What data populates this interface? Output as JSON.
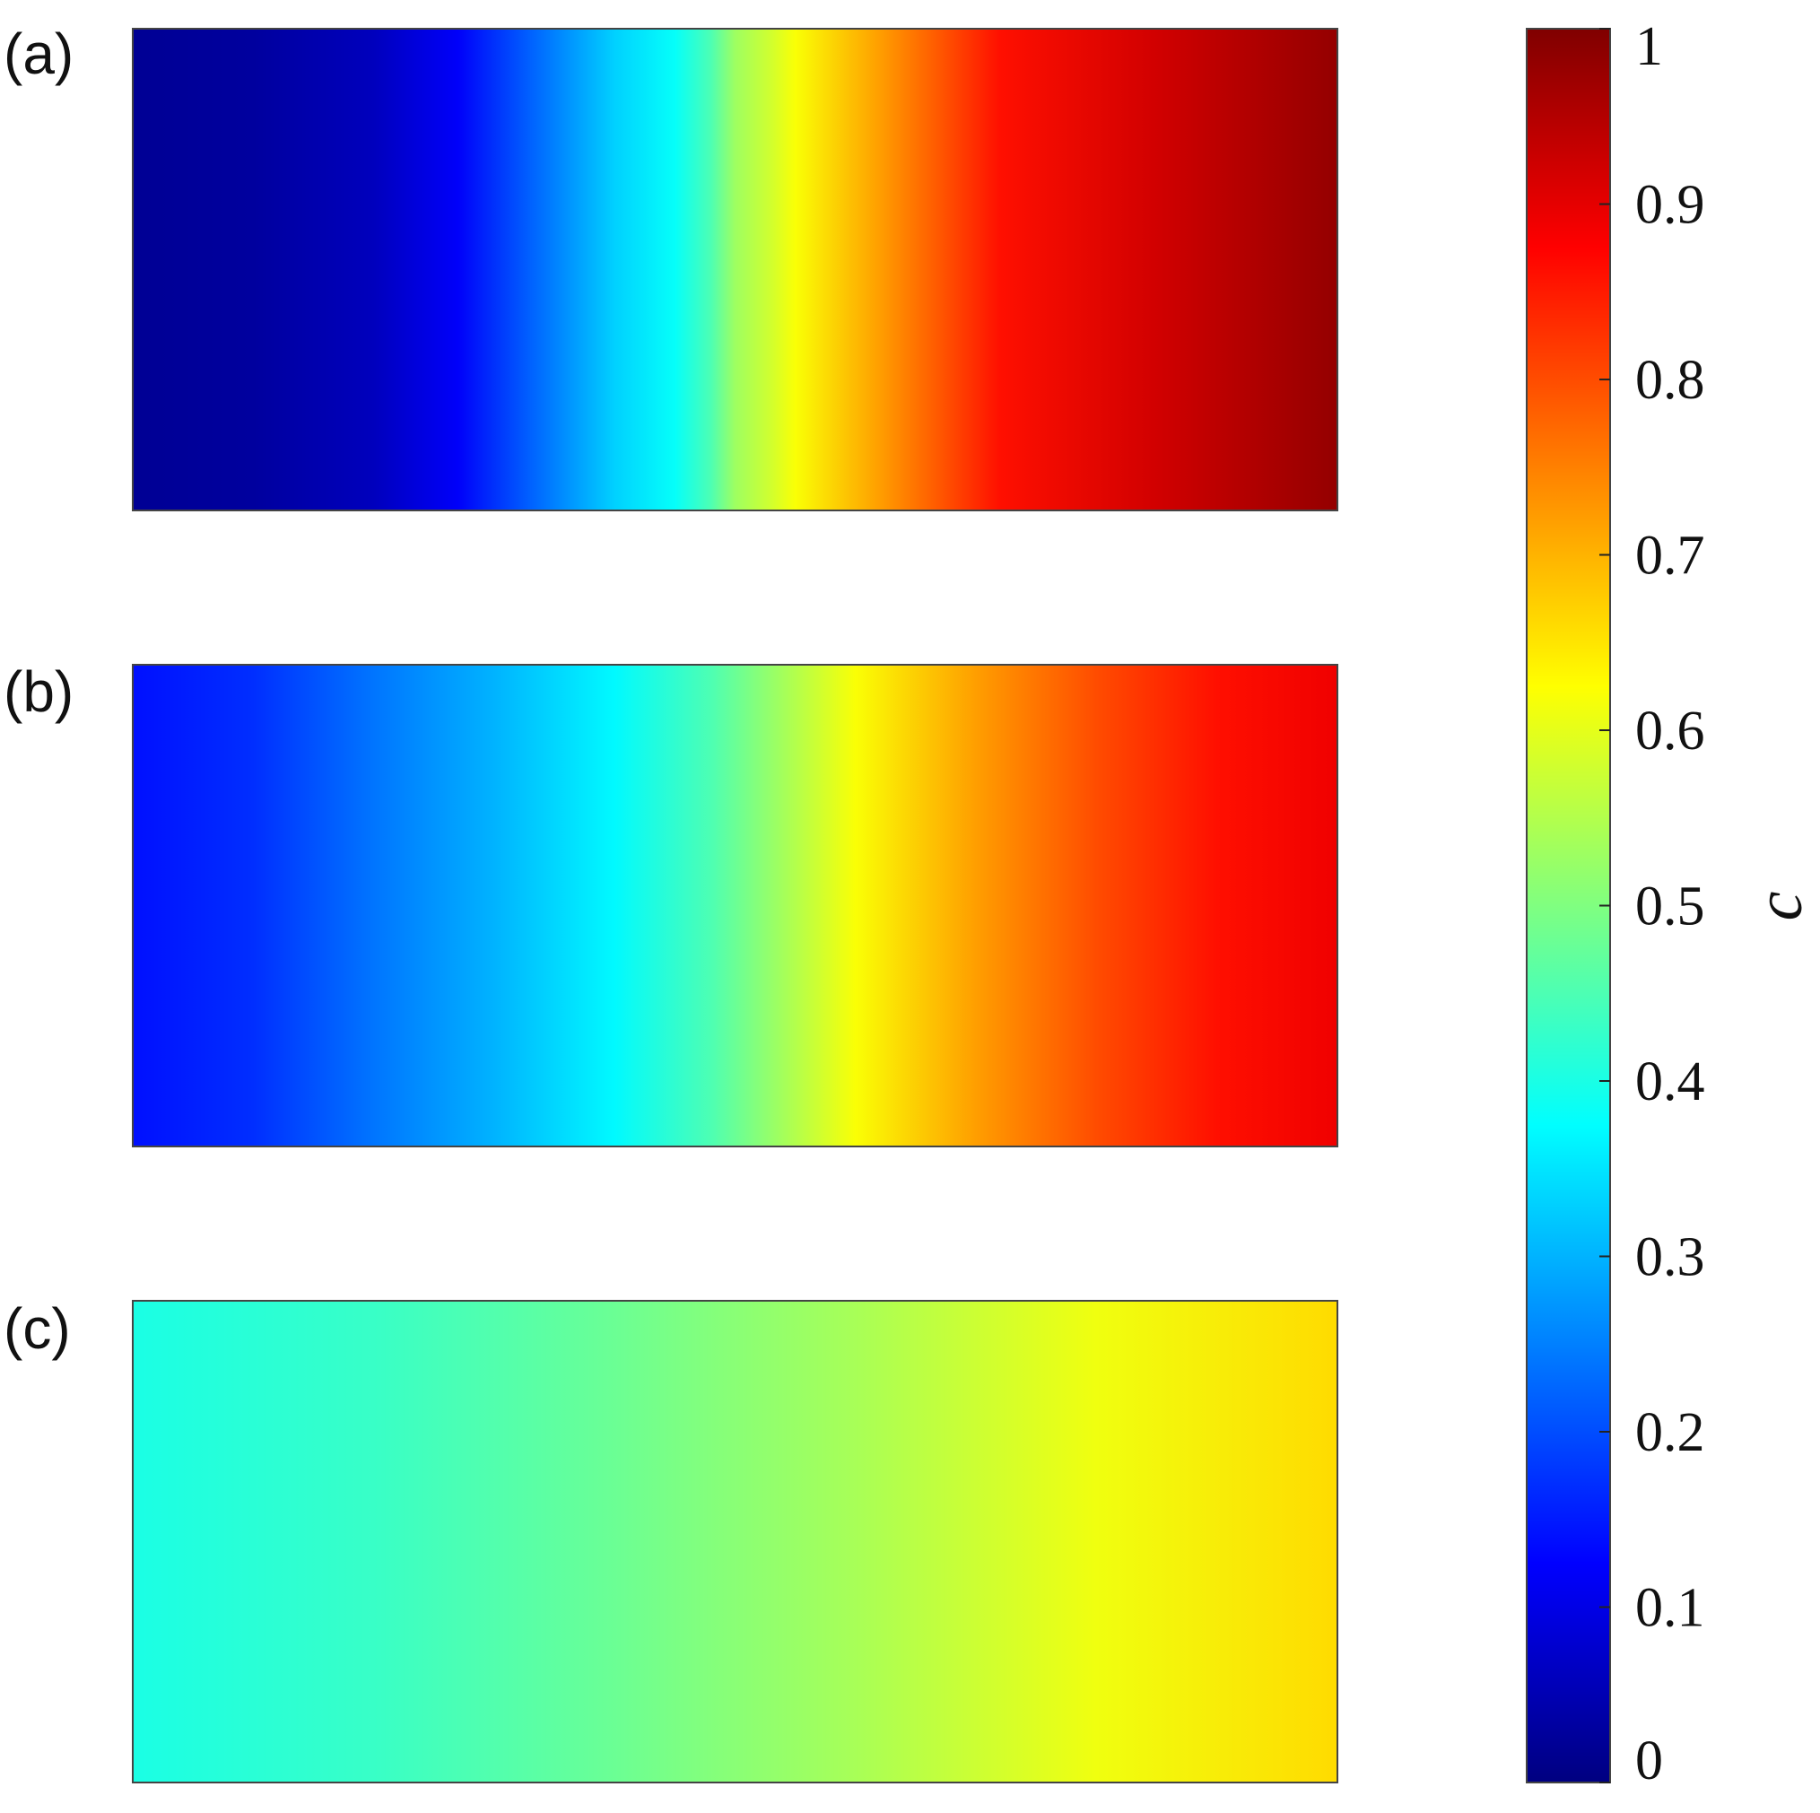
{
  "chart_data": {
    "type": "heatmap",
    "panels": [
      {
        "label": "(a)",
        "value_profile": {
          "x": [
            0,
            0.1,
            0.2,
            0.27,
            0.33,
            0.4,
            0.45,
            0.48,
            0.5,
            0.53,
            0.55,
            0.62,
            0.72,
            0.85,
            0.95,
            1
          ],
          "c": [
            0.02,
            0.03,
            0.06,
            0.12,
            0.22,
            0.33,
            0.38,
            0.45,
            0.53,
            0.58,
            0.62,
            0.72,
            0.86,
            0.92,
            0.96,
            0.98
          ]
        }
      },
      {
        "label": "(b)",
        "value_profile": {
          "x": [
            0,
            0.1,
            0.2,
            0.3,
            0.4,
            0.48,
            0.55,
            0.6,
            0.7,
            0.8,
            0.9,
            1
          ],
          "c": [
            0.14,
            0.17,
            0.24,
            0.3,
            0.37,
            0.45,
            0.55,
            0.62,
            0.72,
            0.8,
            0.86,
            0.89
          ]
        }
      },
      {
        "label": "(c)",
        "value_profile": {
          "x": [
            0,
            0.2,
            0.4,
            0.6,
            0.8,
            1
          ],
          "c": [
            0.4,
            0.43,
            0.48,
            0.54,
            0.61,
            0.66
          ]
        }
      }
    ],
    "colorbar": {
      "label": "c",
      "range": [
        0,
        1
      ],
      "ticks": [
        0,
        0.1,
        0.2,
        0.3,
        0.4,
        0.5,
        0.6,
        0.7,
        0.8,
        0.9,
        1
      ],
      "tick_labels": [
        "0",
        "0.1",
        "0.2",
        "0.3",
        "0.4",
        "0.5",
        "0.6",
        "0.7",
        "0.8",
        "0.9",
        "1"
      ],
      "colormap": "jet"
    }
  }
}
